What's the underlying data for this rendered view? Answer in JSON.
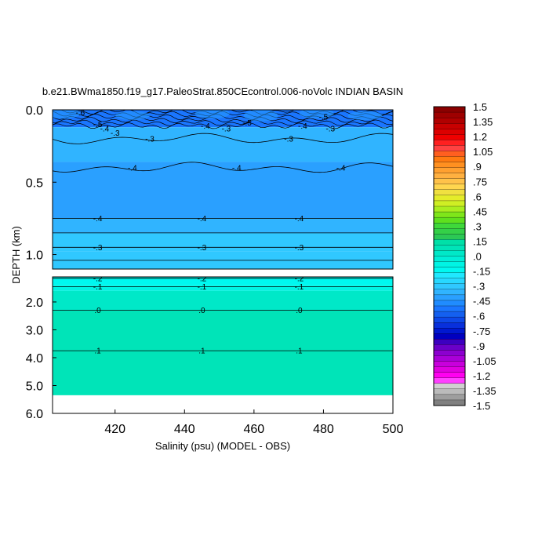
{
  "chart_data": {
    "type": "contour",
    "title": "b.e21.BWma1850.f19_g17.PaleoStrat.850CEcontrol.006-noVolc INDIAN BASIN",
    "xlabel": "Salinity (psu) (MODEL - OBS)",
    "ylabel": "DEPTH (km)",
    "xlim": [
      402,
      500
    ],
    "x_ticks": [
      {
        "value": 420,
        "label": "420"
      },
      {
        "value": 440,
        "label": "440"
      },
      {
        "value": 460,
        "label": "460"
      },
      {
        "value": 480,
        "label": "480"
      },
      {
        "value": 500,
        "label": "500"
      }
    ],
    "upper_panel": {
      "ylim": [
        0.0,
        1.1
      ],
      "y_ticks": [
        {
          "value": 0.0,
          "label": "0.0"
        },
        {
          "value": 0.5,
          "label": "0.5"
        },
        {
          "value": 1.0,
          "label": "1.0"
        }
      ]
    },
    "lower_panel": {
      "ylim": [
        1.1,
        6.0
      ],
      "y_ticks": [
        {
          "value": 2.0,
          "label": "2.0"
        },
        {
          "value": 3.0,
          "label": "3.0"
        },
        {
          "value": 4.0,
          "label": "4.0"
        },
        {
          "value": 5.0,
          "label": "5.0"
        },
        {
          "value": 6.0,
          "label": "6.0"
        }
      ],
      "data_bottom_depth": 5.35
    },
    "field_layers": [
      {
        "panel": "upper",
        "depth_top": 0.0,
        "depth_bottom": 0.12,
        "value": -0.55
      },
      {
        "panel": "upper",
        "depth_top": 0.12,
        "depth_bottom": 0.36,
        "value": -0.35
      },
      {
        "panel": "upper",
        "depth_top": 0.36,
        "depth_bottom": 0.75,
        "value": -0.42
      },
      {
        "panel": "upper",
        "depth_top": 0.75,
        "depth_bottom": 0.85,
        "value": -0.38
      },
      {
        "panel": "upper",
        "depth_top": 0.85,
        "depth_bottom": 0.98,
        "value": -0.33
      },
      {
        "panel": "upper",
        "depth_top": 0.98,
        "depth_bottom": 1.1,
        "value": -0.28
      },
      {
        "panel": "lower",
        "depth_top": 1.1,
        "depth_bottom": 1.4,
        "value": -0.16
      },
      {
        "panel": "lower",
        "depth_top": 1.4,
        "depth_bottom": 1.6,
        "value": -0.08
      },
      {
        "panel": "lower",
        "depth_top": 1.6,
        "depth_bottom": 2.3,
        "value": 0.02
      },
      {
        "panel": "lower",
        "depth_top": 2.3,
        "depth_bottom": 5.35,
        "value": 0.08
      }
    ],
    "contours": [
      {
        "panel": "upper",
        "depth": 0.2,
        "level": "-.3",
        "labels_at": [
          430,
          470
        ]
      },
      {
        "panel": "upper",
        "depth": 0.4,
        "level": "-.4",
        "labels_at": [
          425,
          455,
          485
        ]
      },
      {
        "panel": "upper",
        "depth": 0.75,
        "level": "-.4",
        "labels_at": [
          415,
          445,
          473
        ]
      },
      {
        "panel": "upper",
        "depth": 0.85,
        "level": "-.35",
        "labels_at": []
      },
      {
        "panel": "upper",
        "depth": 0.95,
        "level": "-.3",
        "labels_at": [
          415,
          445,
          473
        ]
      },
      {
        "panel": "upper",
        "depth": 1.04,
        "level": "-.25",
        "labels_at": []
      },
      {
        "panel": "lower",
        "depth": 1.15,
        "level": "-.2",
        "labels_at": [
          415,
          445,
          473
        ]
      },
      {
        "panel": "lower",
        "depth": 1.45,
        "level": "-.1",
        "labels_at": [
          415,
          445,
          473
        ]
      },
      {
        "panel": "lower",
        "depth": 2.3,
        "level": ".0",
        "labels_at": [
          415,
          445,
          473
        ]
      },
      {
        "panel": "lower",
        "depth": 3.75,
        "level": ".1",
        "labels_at": [
          415,
          445,
          473
        ]
      }
    ],
    "surface_labels": [
      {
        "text": "-.6",
        "x": 410,
        "depth": 0.02
      },
      {
        "text": "-.5",
        "x": 415,
        "depth": 0.1
      },
      {
        "text": "-.4",
        "x": 417,
        "depth": 0.13
      },
      {
        "text": "-.3",
        "x": 420,
        "depth": 0.16
      },
      {
        "text": "-.4",
        "x": 446,
        "depth": 0.11
      },
      {
        "text": "-.3",
        "x": 452,
        "depth": 0.13
      },
      {
        "text": "-.5",
        "x": 458,
        "depth": 0.09
      },
      {
        "text": "-.4",
        "x": 474,
        "depth": 0.11
      },
      {
        "text": "-.5",
        "x": 480,
        "depth": 0.05
      },
      {
        "text": "-.3",
        "x": 482,
        "depth": 0.13
      }
    ],
    "colorbar": {
      "levels": [
        "1.5",
        "1.35",
        "1.2",
        "1.05",
        ".9",
        ".75",
        ".6",
        ".45",
        ".3",
        ".15",
        ".0",
        "-.15",
        "-.3",
        "-.45",
        "-.6",
        "-.75",
        "-.9",
        "-1.05",
        "-1.2",
        "-1.35",
        "-1.5"
      ],
      "colors": [
        "#8b0000",
        "#9e0000",
        "#b00000",
        "#c80000",
        "#dc0000",
        "#f00000",
        "#ff2020",
        "#ff4242",
        "#ff5f1f",
        "#ff7a10",
        "#ff9020",
        "#ffa030",
        "#ffb040",
        "#ffc24a",
        "#ffd64f",
        "#f0e040",
        "#e4ec2a",
        "#cfef24",
        "#aaee1f",
        "#7fe61a",
        "#5fe01e",
        "#3fd83a",
        "#34d048",
        "#2cc855",
        "#00e0a8",
        "#00e4b8",
        "#00e8c8",
        "#00eed8",
        "#00f4e4",
        "#00f8f0",
        "#20e8ff",
        "#28d8ff",
        "#30c8ff",
        "#30b4ff",
        "#2aa0ff",
        "#208cff",
        "#1a76ff",
        "#1460f0",
        "#0d48e8",
        "#0830dc",
        "#0018d0",
        "#0000c0",
        "#3c00c0",
        "#6a00c8",
        "#8c00d0",
        "#aa00d8",
        "#c800dc",
        "#e000e0",
        "#ff00f0",
        "#ff40ff",
        "#d0d0d0",
        "#bbbbbb",
        "#9e9e9e",
        "#808080"
      ]
    }
  }
}
